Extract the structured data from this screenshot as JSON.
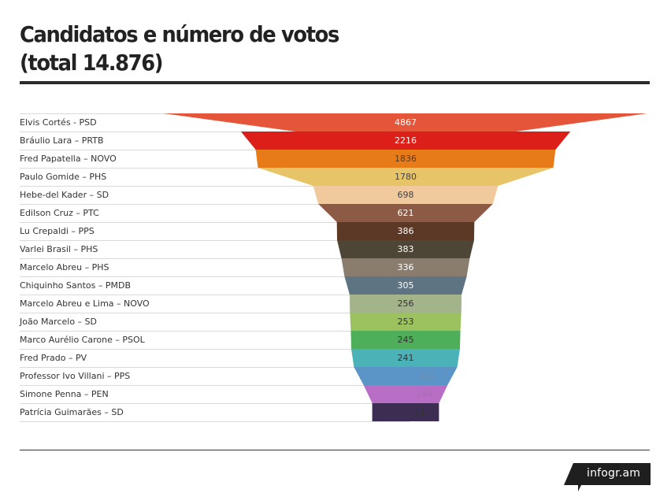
{
  "header": {
    "title_line1": "Candidatos e número de votos",
    "title_line2": "(total 14.876)"
  },
  "brand": {
    "label": "infogr.am"
  },
  "chart_data": {
    "type": "funnel",
    "categories": [
      "Elvis Cortés - PSD",
      "Bráulio Lara – PRTB",
      "Fred Papatella – NOVO",
      "Paulo Gomide – PHS",
      "Hebe-del Kader – SD",
      "Edilson Cruz – PTC",
      "Lu Crepaldi – PPS",
      "Varlei Brasil – PHS",
      "Marcelo Abreu – PHS",
      "Chiquinho Santos – PMDB",
      "Marcelo Abreu e Lima – NOVO",
      "João Marcelo – SD",
      "Marco Aurélio Carone – PSOL",
      "Fred Prado – PV",
      "Professor Ivo Villani – PPS",
      "Simone Penna – PEN",
      "Patrícia Guimarães – SD"
    ],
    "values": [
      4867,
      2216,
      1836,
      1780,
      698,
      621,
      386,
      383,
      336,
      305,
      256,
      253,
      245,
      241,
      218,
      144,
      91
    ],
    "colors": [
      "#e5553a",
      "#dd1f1a",
      "#e67b17",
      "#e8c468",
      "#f0c99c",
      "#8c5a45",
      "#5c3826",
      "#4d4535",
      "#8b7d6e",
      "#5f7482",
      "#a3b38a",
      "#9cc25f",
      "#4fae5a",
      "#4bb3b7",
      "#5b95c8",
      "#b96ec6",
      "#3e2d52"
    ],
    "value_label_colors": [
      "#ffffff",
      "#ffffff",
      "#5a3a1a",
      "#444444",
      "#444444",
      "#ffffff",
      "#ffffff",
      "#ffffff",
      "#ffffff",
      "#ffffff",
      "#333333",
      "#333333",
      "#333333",
      "#333333",
      "#6d8fb0",
      "#a56fb3",
      "#333333"
    ],
    "title": "Candidatos e número de votos (total 14.876)"
  }
}
